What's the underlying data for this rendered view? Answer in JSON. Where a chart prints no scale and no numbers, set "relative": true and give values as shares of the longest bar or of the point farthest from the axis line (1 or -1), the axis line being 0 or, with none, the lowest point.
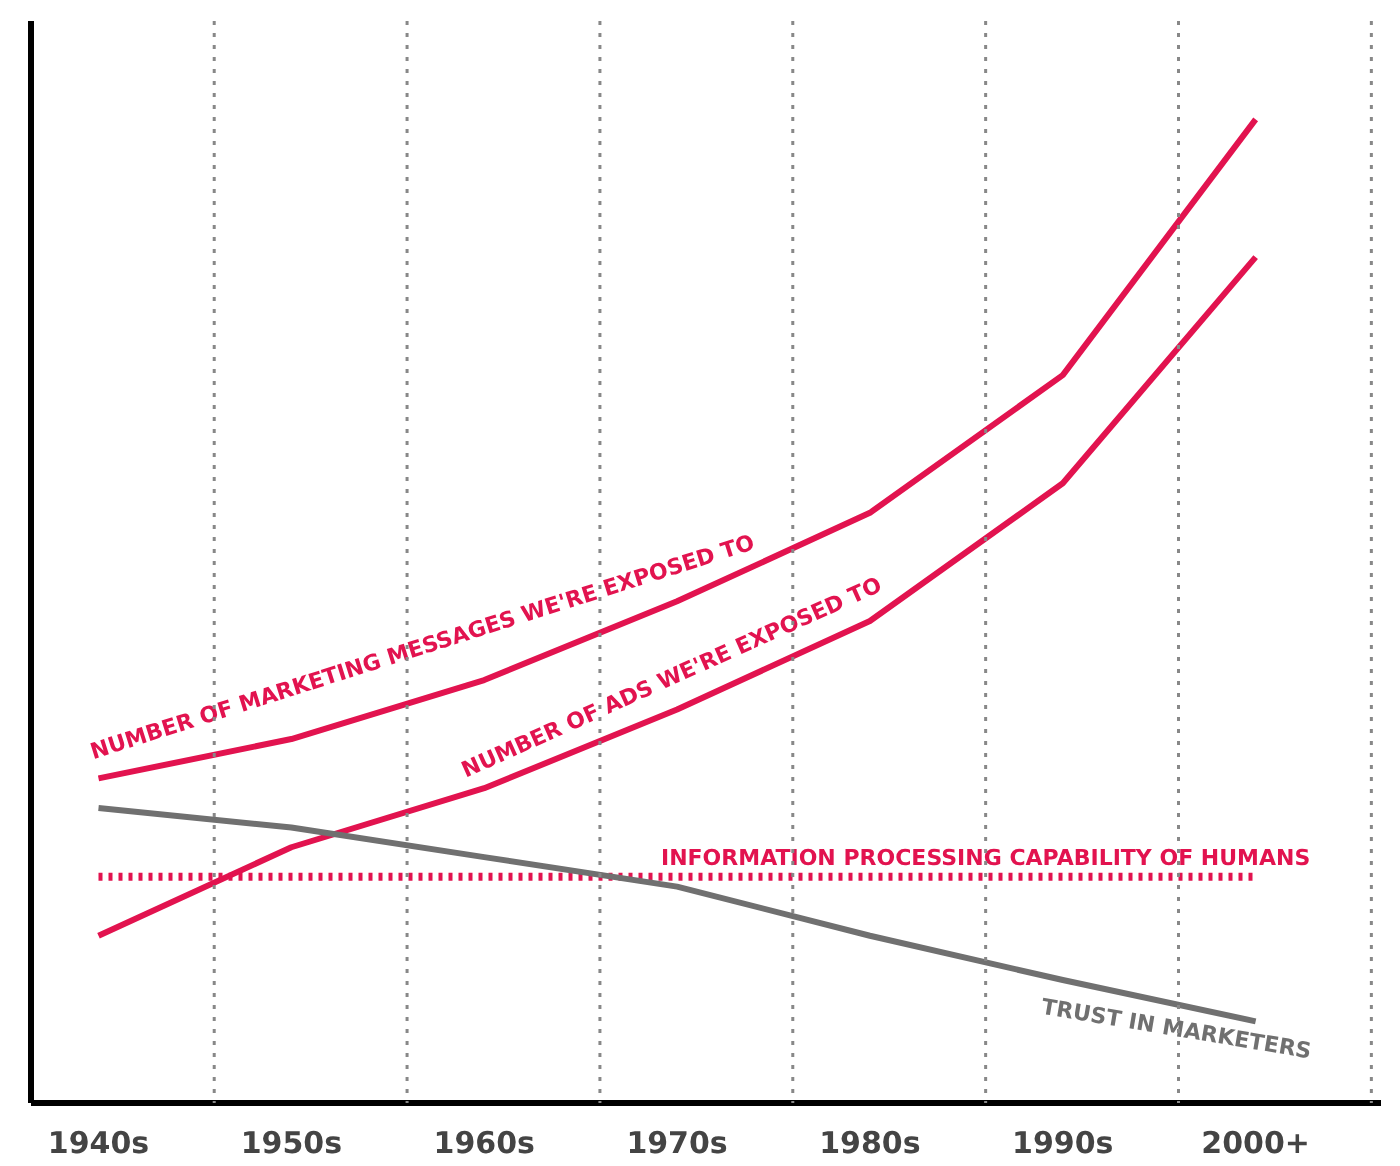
{
  "chart_data": {
    "type": "line",
    "relative": true,
    "tick_labels": "x",
    "grid": "x",
    "legend": false,
    "marker": "none",
    "categories": [
      "1940s",
      "1950s",
      "1960s",
      "1970s",
      "1980s",
      "1990s",
      "2000+"
    ],
    "series": [
      {
        "name": "NUMBER OF MARKETING MESSAGES WE'RE EXPOSED TO",
        "color": "#e2134f",
        "line_style": "solid",
        "values": [
          0.33,
          0.37,
          0.43,
          0.51,
          0.6,
          0.74,
          1.0
        ]
      },
      {
        "name": "NUMBER OF ADS WE'RE EXPOSED TO",
        "color": "#e2134f",
        "line_style": "solid",
        "values": [
          0.17,
          0.26,
          0.32,
          0.4,
          0.49,
          0.63,
          0.86
        ]
      },
      {
        "name": "INFORMATION PROCESSING CAPABILITY OF HUMANS",
        "color": "#e2134f",
        "line_style": "dotted",
        "values": [
          0.23,
          0.23,
          0.23,
          0.23,
          0.23,
          0.23,
          0.23
        ]
      },
      {
        "name": "TRUST IN MARKETERS",
        "color": "#707070",
        "line_style": "solid",
        "values": [
          0.3,
          0.28,
          0.25,
          0.22,
          0.17,
          0.125,
          0.083
        ]
      }
    ]
  }
}
